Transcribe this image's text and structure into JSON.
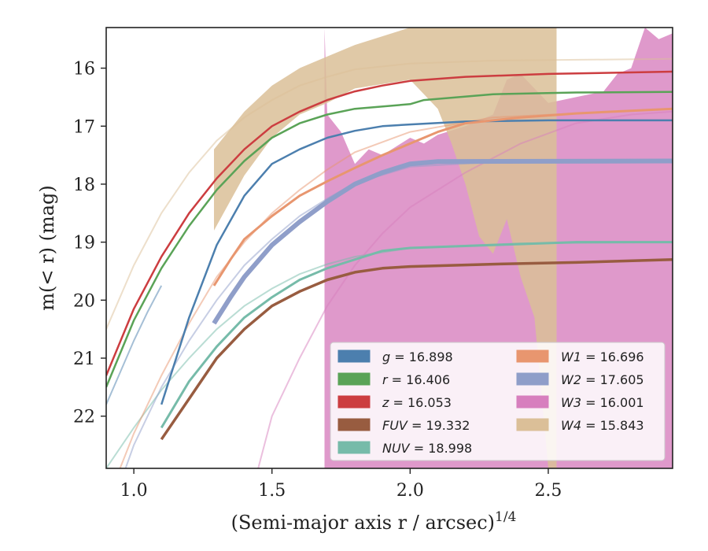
{
  "chart_data": {
    "type": "line",
    "xlabel": "(Semi-major axis r / arcsec)",
    "xlabel_superscript": "1/4",
    "ylabel": "m(< r) (mag)",
    "xlim": [
      0.9,
      2.95
    ],
    "ylim": [
      22.9,
      15.3
    ],
    "y_inverted": true,
    "x_ticks": [
      1.0,
      1.5,
      2.0,
      2.5
    ],
    "x_tick_labels": [
      "1.0",
      "1.5",
      "2.0",
      "2.5"
    ],
    "y_ticks": [
      16,
      17,
      18,
      19,
      20,
      21,
      22
    ],
    "y_tick_labels": [
      "16",
      "17",
      "18",
      "19",
      "20",
      "21",
      "22"
    ],
    "grid": false,
    "legend_position": "lower-right",
    "legend": [
      {
        "band": "g",
        "value": "16.898",
        "color": "#4c7fae"
      },
      {
        "band": "r",
        "value": "16.406",
        "color": "#5aa357"
      },
      {
        "band": "z",
        "value": "16.053",
        "color": "#cc3d40"
      },
      {
        "band": "FUV",
        "value": "19.332",
        "color": "#985c40"
      },
      {
        "band": "NUV",
        "value": "18.998",
        "color": "#76bba9"
      },
      {
        "band": "W1",
        "value": "16.696",
        "color": "#e8966f"
      },
      {
        "band": "W2",
        "value": "17.605",
        "color": "#8f9ec9"
      },
      {
        "band": "W3",
        "value": "16.001",
        "color": "#d77fbe"
      },
      {
        "band": "W4",
        "value": "15.843",
        "color": "#dbbf98"
      }
    ],
    "series": [
      {
        "name": "g",
        "color": "#4c7fae",
        "width": 2.5,
        "data": [
          [
            1.1,
            21.8
          ],
          [
            1.2,
            20.3
          ],
          [
            1.3,
            19.05
          ],
          [
            1.4,
            18.2
          ],
          [
            1.5,
            17.65
          ],
          [
            1.6,
            17.4
          ],
          [
            1.7,
            17.2
          ],
          [
            1.8,
            17.08
          ],
          [
            1.9,
            17.0
          ],
          [
            2.0,
            16.97
          ],
          [
            2.2,
            16.92
          ],
          [
            2.5,
            16.9
          ],
          [
            2.95,
            16.9
          ]
        ],
        "model": [
          [
            0.9,
            21.8
          ],
          [
            0.95,
            21.25
          ],
          [
            1.0,
            20.7
          ],
          [
            1.05,
            20.2
          ],
          [
            1.1,
            19.75
          ]
        ]
      },
      {
        "name": "r",
        "color": "#5aa357",
        "width": 2.5,
        "data": [
          [
            0.9,
            21.5
          ],
          [
            1.0,
            20.35
          ],
          [
            1.1,
            19.45
          ],
          [
            1.2,
            18.72
          ],
          [
            1.3,
            18.1
          ],
          [
            1.4,
            17.6
          ],
          [
            1.5,
            17.2
          ],
          [
            1.6,
            16.95
          ],
          [
            1.7,
            16.8
          ],
          [
            1.8,
            16.7
          ],
          [
            2.0,
            16.62
          ],
          [
            2.05,
            16.55
          ],
          [
            2.3,
            16.45
          ],
          [
            2.6,
            16.42
          ],
          [
            2.95,
            16.41
          ]
        ]
      },
      {
        "name": "z",
        "color": "#cc3d40",
        "width": 2.5,
        "data": [
          [
            0.9,
            21.3
          ],
          [
            1.0,
            20.15
          ],
          [
            1.1,
            19.25
          ],
          [
            1.2,
            18.5
          ],
          [
            1.3,
            17.9
          ],
          [
            1.4,
            17.4
          ],
          [
            1.5,
            17.0
          ],
          [
            1.6,
            16.75
          ],
          [
            1.7,
            16.55
          ],
          [
            1.8,
            16.4
          ],
          [
            1.9,
            16.3
          ],
          [
            2.0,
            16.22
          ],
          [
            2.2,
            16.15
          ],
          [
            2.5,
            16.1
          ],
          [
            2.95,
            16.06
          ]
        ]
      },
      {
        "name": "FUV",
        "color": "#985c40",
        "width": 3.5,
        "data": [
          [
            1.1,
            22.4
          ],
          [
            1.2,
            21.7
          ],
          [
            1.3,
            21.0
          ],
          [
            1.4,
            20.5
          ],
          [
            1.5,
            20.1
          ],
          [
            1.6,
            19.85
          ],
          [
            1.7,
            19.65
          ],
          [
            1.8,
            19.52
          ],
          [
            1.9,
            19.45
          ],
          [
            2.0,
            19.42
          ],
          [
            2.3,
            19.38
          ],
          [
            2.6,
            19.35
          ],
          [
            2.95,
            19.3
          ]
        ]
      },
      {
        "name": "NUV",
        "color": "#76bba9",
        "width": 3,
        "data": [
          [
            1.1,
            22.2
          ],
          [
            1.2,
            21.4
          ],
          [
            1.3,
            20.8
          ],
          [
            1.4,
            20.3
          ],
          [
            1.5,
            19.95
          ],
          [
            1.6,
            19.65
          ],
          [
            1.7,
            19.45
          ],
          [
            1.8,
            19.3
          ],
          [
            1.9,
            19.15
          ],
          [
            2.0,
            19.1
          ],
          [
            2.3,
            19.05
          ],
          [
            2.6,
            19.0
          ],
          [
            2.95,
            19.0
          ]
        ],
        "model": [
          [
            0.9,
            22.9
          ],
          [
            1.0,
            22.2
          ],
          [
            1.1,
            21.55
          ],
          [
            1.2,
            21.0
          ],
          [
            1.3,
            20.5
          ],
          [
            1.4,
            20.1
          ],
          [
            1.5,
            19.8
          ],
          [
            1.6,
            19.55
          ],
          [
            1.7,
            19.38
          ],
          [
            1.8,
            19.25
          ],
          [
            2.0,
            19.1
          ],
          [
            2.4,
            19.02
          ],
          [
            2.95,
            19.0
          ]
        ]
      },
      {
        "name": "W1",
        "color": "#e8966f",
        "width": 3,
        "data": [
          [
            1.29,
            19.75
          ],
          [
            1.35,
            19.3
          ],
          [
            1.4,
            18.95
          ],
          [
            1.5,
            18.55
          ],
          [
            1.6,
            18.2
          ],
          [
            1.7,
            17.95
          ],
          [
            1.8,
            17.72
          ],
          [
            1.9,
            17.5
          ],
          [
            2.0,
            17.3
          ],
          [
            2.1,
            17.1
          ],
          [
            2.2,
            16.95
          ],
          [
            2.4,
            16.85
          ],
          [
            2.6,
            16.78
          ],
          [
            2.95,
            16.7
          ]
        ],
        "model": [
          [
            0.95,
            22.9
          ],
          [
            1.0,
            22.3
          ],
          [
            1.1,
            21.3
          ],
          [
            1.2,
            20.4
          ],
          [
            1.3,
            19.6
          ],
          [
            1.4,
            19.0
          ],
          [
            1.5,
            18.5
          ],
          [
            1.6,
            18.1
          ],
          [
            1.7,
            17.75
          ],
          [
            1.8,
            17.45
          ],
          [
            2.0,
            17.1
          ],
          [
            2.3,
            16.85
          ],
          [
            2.95,
            16.7
          ]
        ]
      },
      {
        "name": "W2",
        "color": "#8f9ec9",
        "width": 6,
        "data": [
          [
            1.29,
            20.4
          ],
          [
            1.35,
            19.95
          ],
          [
            1.4,
            19.6
          ],
          [
            1.5,
            19.05
          ],
          [
            1.6,
            18.65
          ],
          [
            1.7,
            18.3
          ],
          [
            1.8,
            18.0
          ],
          [
            1.9,
            17.8
          ],
          [
            2.0,
            17.65
          ],
          [
            2.1,
            17.61
          ],
          [
            2.95,
            17.6
          ]
        ],
        "model": [
          [
            0.97,
            22.9
          ],
          [
            1.0,
            22.5
          ],
          [
            1.1,
            21.5
          ],
          [
            1.2,
            20.7
          ],
          [
            1.3,
            20.0
          ],
          [
            1.4,
            19.4
          ],
          [
            1.5,
            18.95
          ],
          [
            1.6,
            18.55
          ],
          [
            1.7,
            18.25
          ],
          [
            1.8,
            17.98
          ],
          [
            2.0,
            17.7
          ],
          [
            2.3,
            17.62
          ],
          [
            2.95,
            17.6
          ]
        ]
      },
      {
        "name": "W3",
        "color": "#d77fbe",
        "width": 2,
        "data": [],
        "model": [
          [
            1.45,
            22.9
          ],
          [
            1.5,
            22.0
          ],
          [
            1.6,
            21.0
          ],
          [
            1.7,
            20.1
          ],
          [
            1.8,
            19.4
          ],
          [
            1.9,
            18.85
          ],
          [
            2.0,
            18.4
          ],
          [
            2.2,
            17.8
          ],
          [
            2.4,
            17.3
          ],
          [
            2.6,
            16.95
          ],
          [
            2.8,
            16.8
          ],
          [
            2.95,
            16.75
          ]
        ],
        "band": [
          [
            1.69,
            15.3,
            22.9
          ],
          [
            1.7,
            16.8,
            22.9
          ],
          [
            1.75,
            17.1,
            22.9
          ],
          [
            1.8,
            17.65,
            22.9
          ],
          [
            1.85,
            17.4,
            22.9
          ],
          [
            1.9,
            17.5,
            22.9
          ],
          [
            2.0,
            17.2,
            22.9
          ],
          [
            2.05,
            17.3,
            22.9
          ],
          [
            2.1,
            17.15,
            22.9
          ],
          [
            2.2,
            17.0,
            22.9
          ],
          [
            2.3,
            16.8,
            22.9
          ],
          [
            2.35,
            16.2,
            22.9
          ],
          [
            2.4,
            16.1,
            22.9
          ],
          [
            2.5,
            16.6,
            22.9
          ],
          [
            2.6,
            16.5,
            22.9
          ],
          [
            2.7,
            16.4,
            22.9
          ],
          [
            2.75,
            16.1,
            22.9
          ],
          [
            2.8,
            16.0,
            22.9
          ],
          [
            2.85,
            15.3,
            22.9
          ],
          [
            2.9,
            15.5,
            22.9
          ],
          [
            2.95,
            15.4,
            22.9
          ]
        ]
      },
      {
        "name": "W4",
        "color": "#dbbf98",
        "width": 2,
        "data": [],
        "model": [
          [
            0.9,
            20.5
          ],
          [
            1.0,
            19.4
          ],
          [
            1.1,
            18.5
          ],
          [
            1.2,
            17.8
          ],
          [
            1.3,
            17.25
          ],
          [
            1.4,
            16.85
          ],
          [
            1.5,
            16.55
          ],
          [
            1.6,
            16.3
          ],
          [
            1.7,
            16.15
          ],
          [
            1.8,
            16.02
          ],
          [
            2.0,
            15.92
          ],
          [
            2.3,
            15.87
          ],
          [
            2.95,
            15.84
          ]
        ],
        "band": [
          [
            1.29,
            17.4,
            18.8
          ],
          [
            1.4,
            16.75,
            17.85
          ],
          [
            1.5,
            16.3,
            17.2
          ],
          [
            1.6,
            16.0,
            16.8
          ],
          [
            1.7,
            15.8,
            16.6
          ],
          [
            1.8,
            15.6,
            16.35
          ],
          [
            2.0,
            15.3,
            16.2
          ],
          [
            2.1,
            15.3,
            16.7
          ],
          [
            2.15,
            15.3,
            17.3
          ],
          [
            2.2,
            15.3,
            18.0
          ],
          [
            2.25,
            15.3,
            18.9
          ],
          [
            2.3,
            15.3,
            19.2
          ],
          [
            2.35,
            15.3,
            18.6
          ],
          [
            2.4,
            15.3,
            19.6
          ],
          [
            2.45,
            15.3,
            20.3
          ],
          [
            2.5,
            15.3,
            22.9
          ],
          [
            2.53,
            15.3,
            22.9
          ]
        ]
      }
    ]
  }
}
